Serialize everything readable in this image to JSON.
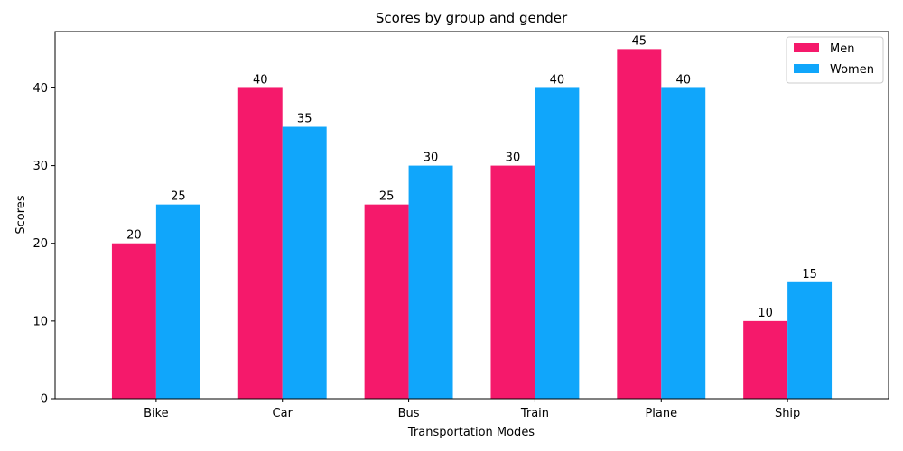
{
  "chart_data": {
    "type": "bar",
    "title": "Scores by group and gender",
    "xlabel": "Transportation Modes",
    "ylabel": "Scores",
    "categories": [
      "Bike",
      "Car",
      "Bus",
      "Train",
      "Plane",
      "Ship"
    ],
    "series": [
      {
        "name": "Men",
        "values": [
          20,
          40,
          25,
          30,
          45,
          10
        ],
        "color": "#f5196b"
      },
      {
        "name": "Women",
        "values": [
          25,
          35,
          30,
          40,
          40,
          15
        ],
        "color": "#10a6fb"
      }
    ],
    "ylim": [
      0,
      47.25
    ],
    "yticks": [
      0,
      10,
      20,
      30,
      40
    ],
    "grid": false,
    "legend": "top-right"
  }
}
